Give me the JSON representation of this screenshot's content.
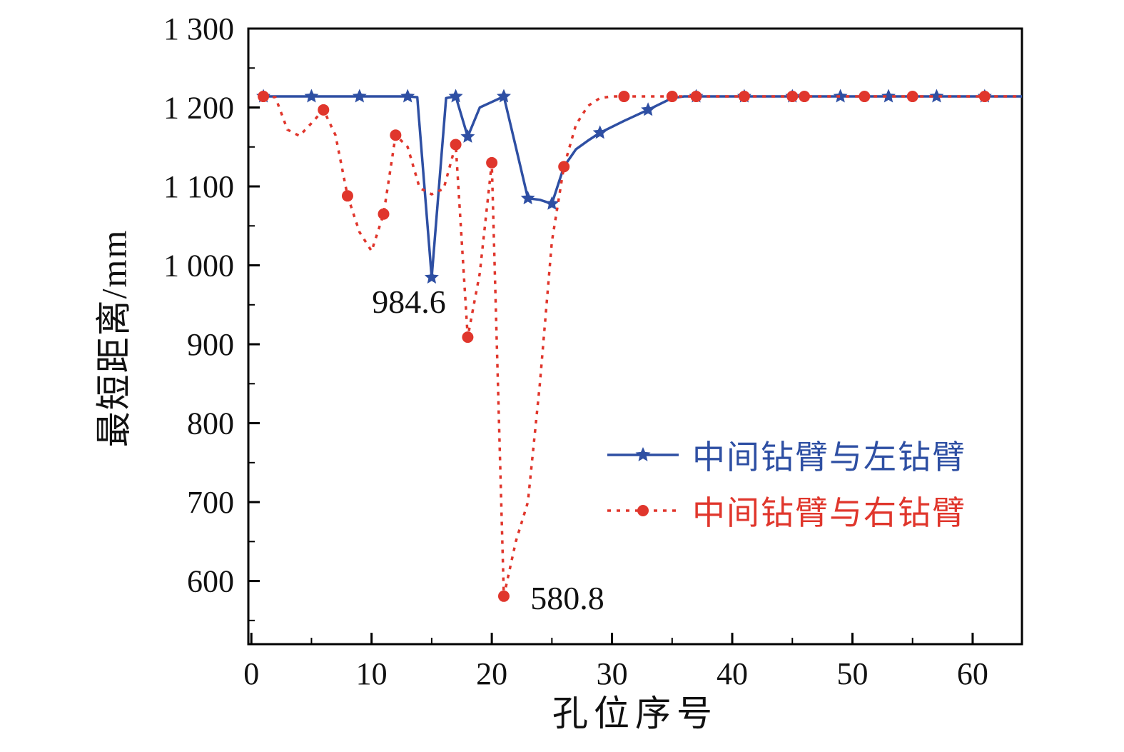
{
  "figure": {
    "background": "#ffffff",
    "text_color": "#111111",
    "axis_color": "#000000"
  },
  "chart_data": {
    "type": "line",
    "title": "",
    "xlabel": "孔位序号",
    "ylabel": "最短距离/mm",
    "xlim": [
      -0.25,
      64.1
    ],
    "ylim": [
      520,
      1300
    ],
    "grid": false,
    "legend_position": "center-right",
    "xticks": [
      {
        "v": 0,
        "label": "0"
      },
      {
        "v": 10,
        "label": "10"
      },
      {
        "v": 20,
        "label": "20"
      },
      {
        "v": 30,
        "label": "30"
      },
      {
        "v": 40,
        "label": "40"
      },
      {
        "v": 50,
        "label": "50"
      },
      {
        "v": 60,
        "label": "60"
      }
    ],
    "yticks": [
      {
        "v": 600,
        "label": "600"
      },
      {
        "v": 700,
        "label": "700"
      },
      {
        "v": 800,
        "label": "800"
      },
      {
        "v": 900,
        "label": "900"
      },
      {
        "v": 1000,
        "label": "1 000"
      },
      {
        "v": 1100,
        "label": "1 100"
      },
      {
        "v": 1200,
        "label": "1 200"
      },
      {
        "v": 1300,
        "label": "1 300"
      }
    ],
    "xminor": [
      5,
      15,
      25,
      35,
      45,
      55
    ],
    "yminor": [
      550,
      650,
      750,
      850,
      950,
      1050,
      1150,
      1250
    ],
    "series": [
      {
        "name": "中间钻臂与左钻臂",
        "color": "#2e4fa3",
        "style": "solid",
        "marker": "star",
        "points": [
          [
            1,
            1214
          ],
          [
            5,
            1214
          ],
          [
            9,
            1214
          ],
          [
            13,
            1214
          ],
          [
            13.8,
            1213
          ],
          [
            15,
            984.6
          ],
          [
            16.2,
            1212
          ],
          [
            17,
            1214
          ],
          [
            18,
            1163
          ],
          [
            19,
            1200
          ],
          [
            20,
            1207
          ],
          [
            21,
            1214
          ],
          [
            22,
            1150
          ],
          [
            23,
            1085
          ],
          [
            24,
            1083
          ],
          [
            25,
            1078
          ],
          [
            26,
            1125
          ],
          [
            27,
            1147
          ],
          [
            28,
            1158
          ],
          [
            29,
            1168
          ],
          [
            31,
            1183
          ],
          [
            33,
            1197
          ],
          [
            35,
            1212
          ],
          [
            36,
            1214
          ],
          [
            37,
            1214
          ],
          [
            41,
            1214
          ],
          [
            45,
            1214
          ],
          [
            49,
            1214
          ],
          [
            53,
            1214
          ],
          [
            57,
            1214
          ],
          [
            61,
            1214
          ],
          [
            64.1,
            1214
          ]
        ],
        "marker_x": [
          1,
          5,
          9,
          13,
          15,
          17,
          18,
          21,
          23,
          25,
          29,
          33,
          37,
          41,
          45,
          49,
          53,
          57,
          61
        ]
      },
      {
        "name": "中间钻臂与右钻臂",
        "color": "#e0362c",
        "style": "dashed",
        "dash": "5 8",
        "marker": "circle",
        "points": [
          [
            1,
            1214
          ],
          [
            2,
            1213
          ],
          [
            3,
            1172
          ],
          [
            4,
            1164
          ],
          [
            5,
            1180
          ],
          [
            6,
            1197
          ],
          [
            7,
            1165
          ],
          [
            8,
            1088
          ],
          [
            9,
            1042
          ],
          [
            10,
            1018
          ],
          [
            11,
            1065
          ],
          [
            12,
            1165
          ],
          [
            13,
            1150
          ],
          [
            14,
            1098
          ],
          [
            15,
            1090
          ],
          [
            16,
            1097
          ],
          [
            17,
            1153
          ],
          [
            18,
            909
          ],
          [
            19,
            990
          ],
          [
            20,
            1130
          ],
          [
            21,
            580.8
          ],
          [
            22,
            650
          ],
          [
            23,
            700
          ],
          [
            24,
            850
          ],
          [
            25,
            1030
          ],
          [
            26,
            1125
          ],
          [
            27,
            1178
          ],
          [
            28,
            1202
          ],
          [
            29,
            1212
          ],
          [
            30,
            1214
          ],
          [
            31,
            1214
          ],
          [
            35,
            1214
          ],
          [
            37,
            1214
          ],
          [
            41,
            1214
          ],
          [
            45,
            1214
          ],
          [
            46,
            1214
          ],
          [
            49,
            1214
          ],
          [
            51,
            1214
          ],
          [
            55,
            1214
          ],
          [
            57,
            1214
          ],
          [
            61,
            1214
          ],
          [
            64.1,
            1214
          ]
        ],
        "marker_x": [
          1,
          6,
          8,
          11,
          12,
          17,
          18,
          20,
          21,
          26,
          31,
          35,
          37,
          41,
          45,
          46,
          51,
          55,
          61
        ]
      }
    ],
    "annotations": [
      {
        "text": "984.6",
        "series": "中间钻臂与左钻臂",
        "x": 15,
        "y": 984.6
      },
      {
        "text": "580.8",
        "series": "中间钻臂与右钻臂",
        "x": 21,
        "y": 580.8
      }
    ]
  }
}
